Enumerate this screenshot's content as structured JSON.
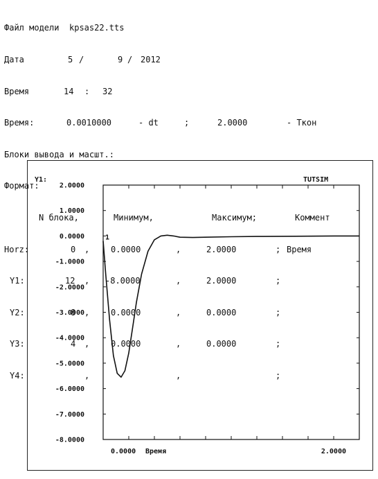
{
  "header": {
    "model_label": "Файл модели",
    "model_file": "kpsas22.tts",
    "date_label": "Дата",
    "date_day": "5",
    "date_month": "9",
    "date_year": "2012",
    "date_sep": "/",
    "time_label": "Время",
    "time_hour": "14",
    "time_min": "32",
    "time_sep": ":",
    "step_label": "Время:",
    "dt_value": "0.0010000",
    "dt_label": "- dt",
    "dt_sep": ";",
    "tend_value": "2.0000",
    "tend_label": "- Ткон",
    "blocks_label": "Блоки вывода и масшт.:",
    "format_label": "Формат:",
    "columns": [
      "N блока,",
      "Минимум,",
      "Максимум;",
      "Коммент"
    ],
    "rows": [
      {
        "name": "Horz:",
        "block": "0",
        "min": "0.0000",
        "max": "2.0000",
        "comment": "Время"
      },
      {
        "name": "Y1:",
        "block": "12",
        "min": "-8.0000",
        "max": "2.0000",
        "comment": ""
      },
      {
        "name": "Y2:",
        "block": "8",
        "min": "0.0000",
        "max": "0.0000",
        "comment": ""
      },
      {
        "name": "Y3:",
        "block": "4",
        "min": "0.0000",
        "max": "0.0000",
        "comment": ""
      },
      {
        "name": "Y4:",
        "block": "",
        "min": "",
        "max": "",
        "comment": ""
      }
    ]
  },
  "chart_data": {
    "type": "line",
    "title": "TUTSIM",
    "ylabel": "Y1:",
    "xlabel": "Время",
    "xlim": [
      0,
      2
    ],
    "ylim": [
      -8,
      2
    ],
    "yticks": [
      "2.0000",
      "1.0000",
      "0.0000",
      "-1.0000",
      "-2.0000",
      "-3.0000",
      "-4.0000",
      "-5.0000",
      "-6.0000",
      "-7.0000",
      "-8.0000"
    ],
    "xtick_labels": [
      "0.0000",
      "2.0000"
    ],
    "series": [
      {
        "name": "1",
        "color": "#111111",
        "x": [
          0,
          0.02,
          0.05,
          0.08,
          0.11,
          0.14,
          0.17,
          0.2,
          0.23,
          0.26,
          0.3,
          0.35,
          0.4,
          0.45,
          0.5,
          0.55,
          0.6,
          0.7,
          0.8,
          1.0,
          1.2,
          1.5,
          1.8,
          2.0
        ],
        "y": [
          -0.2,
          -1.5,
          -3.3,
          -4.7,
          -5.4,
          -5.55,
          -5.3,
          -4.6,
          -3.6,
          -2.6,
          -1.5,
          -0.6,
          -0.15,
          0.0,
          0.03,
          0.0,
          -0.05,
          -0.06,
          -0.05,
          -0.03,
          -0.02,
          -0.01,
          0.0,
          0.0
        ]
      }
    ]
  }
}
